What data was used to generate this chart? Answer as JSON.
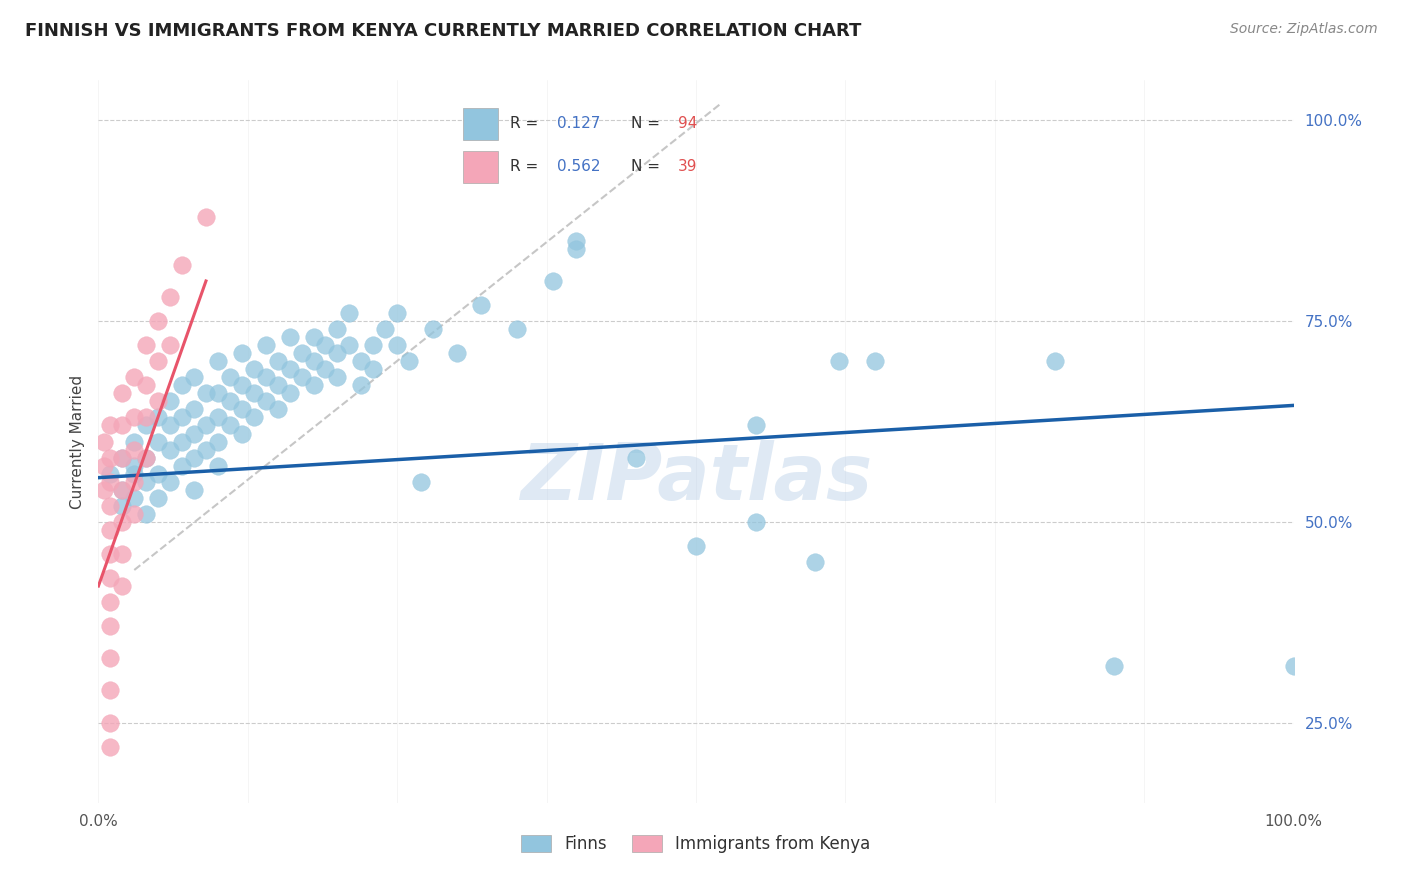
{
  "title": "FINNISH VS IMMIGRANTS FROM KENYA CURRENTLY MARRIED CORRELATION CHART",
  "source": "Source: ZipAtlas.com",
  "ylabel": "Currently Married",
  "legend_entries": [
    {
      "label_r": "R = ",
      "r_val": "0.127",
      "label_n": "  N = ",
      "n_val": "94"
    },
    {
      "label_r": "R = ",
      "r_val": "0.562",
      "label_n": "  N = ",
      "n_val": "39"
    }
  ],
  "finns_color": "#92c5de",
  "immigrants_color": "#f4a6b8",
  "finns_line_color": "#1a5fa8",
  "immigrants_line_color": "#e8546a",
  "dashed_line_color": "#c0c0c0",
  "watermark": "ZIPatlas",
  "finns_scatter": [
    [
      0.01,
      0.56
    ],
    [
      0.02,
      0.54
    ],
    [
      0.02,
      0.58
    ],
    [
      0.02,
      0.52
    ],
    [
      0.03,
      0.6
    ],
    [
      0.03,
      0.56
    ],
    [
      0.03,
      0.53
    ],
    [
      0.03,
      0.57
    ],
    [
      0.04,
      0.62
    ],
    [
      0.04,
      0.58
    ],
    [
      0.04,
      0.55
    ],
    [
      0.04,
      0.51
    ],
    [
      0.05,
      0.63
    ],
    [
      0.05,
      0.6
    ],
    [
      0.05,
      0.56
    ],
    [
      0.05,
      0.53
    ],
    [
      0.06,
      0.65
    ],
    [
      0.06,
      0.62
    ],
    [
      0.06,
      0.59
    ],
    [
      0.06,
      0.55
    ],
    [
      0.07,
      0.67
    ],
    [
      0.07,
      0.63
    ],
    [
      0.07,
      0.6
    ],
    [
      0.07,
      0.57
    ],
    [
      0.08,
      0.68
    ],
    [
      0.08,
      0.64
    ],
    [
      0.08,
      0.61
    ],
    [
      0.08,
      0.58
    ],
    [
      0.08,
      0.54
    ],
    [
      0.09,
      0.66
    ],
    [
      0.09,
      0.62
    ],
    [
      0.09,
      0.59
    ],
    [
      0.1,
      0.7
    ],
    [
      0.1,
      0.66
    ],
    [
      0.1,
      0.63
    ],
    [
      0.1,
      0.6
    ],
    [
      0.1,
      0.57
    ],
    [
      0.11,
      0.68
    ],
    [
      0.11,
      0.65
    ],
    [
      0.11,
      0.62
    ],
    [
      0.12,
      0.71
    ],
    [
      0.12,
      0.67
    ],
    [
      0.12,
      0.64
    ],
    [
      0.12,
      0.61
    ],
    [
      0.13,
      0.69
    ],
    [
      0.13,
      0.66
    ],
    [
      0.13,
      0.63
    ],
    [
      0.14,
      0.72
    ],
    [
      0.14,
      0.68
    ],
    [
      0.14,
      0.65
    ],
    [
      0.15,
      0.7
    ],
    [
      0.15,
      0.67
    ],
    [
      0.15,
      0.64
    ],
    [
      0.16,
      0.73
    ],
    [
      0.16,
      0.69
    ],
    [
      0.16,
      0.66
    ],
    [
      0.17,
      0.71
    ],
    [
      0.17,
      0.68
    ],
    [
      0.18,
      0.73
    ],
    [
      0.18,
      0.7
    ],
    [
      0.18,
      0.67
    ],
    [
      0.19,
      0.72
    ],
    [
      0.19,
      0.69
    ],
    [
      0.2,
      0.74
    ],
    [
      0.2,
      0.71
    ],
    [
      0.2,
      0.68
    ],
    [
      0.21,
      0.76
    ],
    [
      0.21,
      0.72
    ],
    [
      0.22,
      0.7
    ],
    [
      0.22,
      0.67
    ],
    [
      0.23,
      0.72
    ],
    [
      0.23,
      0.69
    ],
    [
      0.24,
      0.74
    ],
    [
      0.25,
      0.76
    ],
    [
      0.25,
      0.72
    ],
    [
      0.26,
      0.7
    ],
    [
      0.27,
      0.55
    ],
    [
      0.28,
      0.74
    ],
    [
      0.3,
      0.71
    ],
    [
      0.32,
      0.77
    ],
    [
      0.35,
      0.74
    ],
    [
      0.38,
      0.8
    ],
    [
      0.4,
      0.85
    ],
    [
      0.4,
      0.84
    ],
    [
      0.45,
      0.58
    ],
    [
      0.5,
      0.47
    ],
    [
      0.55,
      0.62
    ],
    [
      0.55,
      0.5
    ],
    [
      0.6,
      0.45
    ],
    [
      0.62,
      0.7
    ],
    [
      0.65,
      0.7
    ],
    [
      0.8,
      0.7
    ],
    [
      0.85,
      0.32
    ],
    [
      1.0,
      0.32
    ]
  ],
  "immigrants_scatter": [
    [
      0.005,
      0.6
    ],
    [
      0.005,
      0.57
    ],
    [
      0.005,
      0.54
    ],
    [
      0.01,
      0.62
    ],
    [
      0.01,
      0.58
    ],
    [
      0.01,
      0.55
    ],
    [
      0.01,
      0.52
    ],
    [
      0.01,
      0.49
    ],
    [
      0.01,
      0.46
    ],
    [
      0.01,
      0.43
    ],
    [
      0.01,
      0.4
    ],
    [
      0.01,
      0.37
    ],
    [
      0.01,
      0.33
    ],
    [
      0.01,
      0.29
    ],
    [
      0.01,
      0.25
    ],
    [
      0.01,
      0.22
    ],
    [
      0.02,
      0.66
    ],
    [
      0.02,
      0.62
    ],
    [
      0.02,
      0.58
    ],
    [
      0.02,
      0.54
    ],
    [
      0.02,
      0.5
    ],
    [
      0.02,
      0.46
    ],
    [
      0.02,
      0.42
    ],
    [
      0.03,
      0.68
    ],
    [
      0.03,
      0.63
    ],
    [
      0.03,
      0.59
    ],
    [
      0.03,
      0.55
    ],
    [
      0.03,
      0.51
    ],
    [
      0.04,
      0.72
    ],
    [
      0.04,
      0.67
    ],
    [
      0.04,
      0.63
    ],
    [
      0.04,
      0.58
    ],
    [
      0.05,
      0.75
    ],
    [
      0.05,
      0.7
    ],
    [
      0.05,
      0.65
    ],
    [
      0.06,
      0.78
    ],
    [
      0.06,
      0.72
    ],
    [
      0.07,
      0.82
    ],
    [
      0.09,
      0.88
    ]
  ],
  "xlim": [
    0.0,
    1.0
  ],
  "ylim": [
    0.15,
    1.05
  ],
  "finns_trendline": [
    [
      0.0,
      0.555
    ],
    [
      1.0,
      0.645
    ]
  ],
  "immigrants_trendline": [
    [
      0.0,
      0.42
    ],
    [
      0.09,
      0.8
    ]
  ],
  "dashed_trendline": [
    [
      0.03,
      0.44
    ],
    [
      0.52,
      1.02
    ]
  ],
  "ytick_vals": [
    0.25,
    0.5,
    0.75,
    1.0
  ],
  "ytick_labels": [
    "25.0%",
    "50.0%",
    "75.0%",
    "100.0%"
  ],
  "xtick_vals": [
    0.0,
    1.0
  ],
  "xtick_labels": [
    "0.0%",
    "100.0%"
  ],
  "ytick_color": "#4472c4",
  "title_fontsize": 13,
  "source_fontsize": 10
}
